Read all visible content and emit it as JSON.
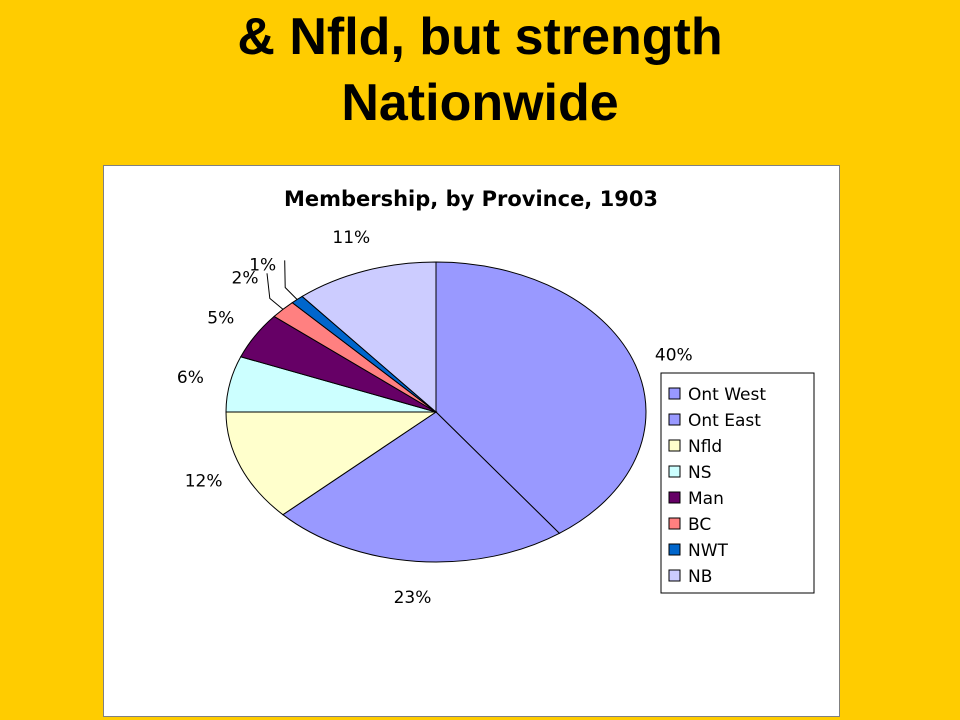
{
  "slide": {
    "title_line1": "& Nfld, but strength",
    "title_line2": "Nationwide"
  },
  "chart_data": {
    "type": "pie",
    "title": "Membership, by Province, 1903",
    "categories": [
      "Ont West",
      "Ont East",
      "Nfld",
      "NS",
      "Man",
      "BC",
      "NWT",
      "NB"
    ],
    "values": [
      40,
      23,
      12,
      6,
      5,
      2,
      1,
      11
    ],
    "labels": [
      "40%",
      "23%",
      "12%",
      "6%",
      "5%",
      "2%",
      "1%",
      "11%"
    ],
    "colors": [
      "#9999FF",
      "#9999FF",
      "#FFFFCC",
      "#CCFFFF",
      "#660066",
      "#FF8080",
      "#0066CC",
      "#CCCCFF"
    ],
    "legend_position": "right",
    "start_angle_deg": 0,
    "direction": "clockwise"
  },
  "colors": {
    "background": "#FFCC00",
    "chart_background": "#FFFFFF"
  }
}
